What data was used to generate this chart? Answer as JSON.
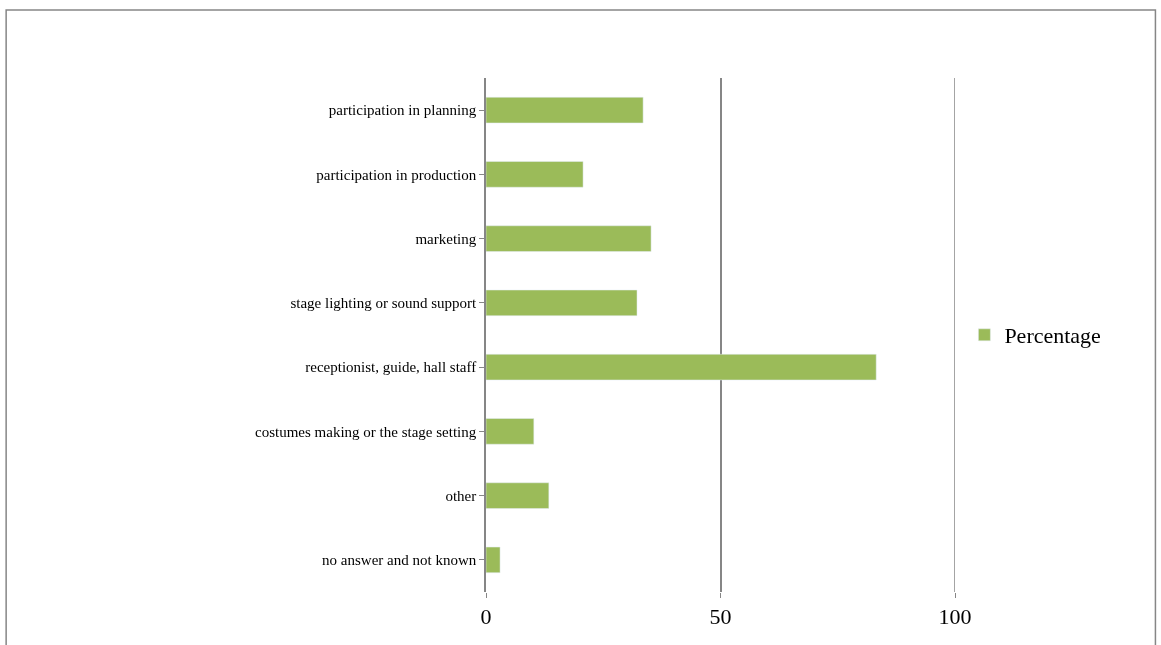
{
  "chart_data": {
    "type": "bar",
    "orientation": "horizontal",
    "categories": [
      "participation in planning",
      "participation in production",
      "marketing",
      "stage lighting or sound support",
      "receptionist, guide, hall staff",
      "costumes making or the stage setting",
      "other",
      "no answer and not known"
    ],
    "series": [
      {
        "name": "Percentage",
        "color": "#9bbb59",
        "values": [
          33.5,
          20.7,
          35.2,
          32.2,
          83.2,
          10.2,
          13.4,
          3.0
        ]
      }
    ],
    "xlim": [
      0,
      100
    ],
    "xticks": [
      0,
      50,
      100
    ],
    "grid": "x",
    "legend": "right"
  }
}
